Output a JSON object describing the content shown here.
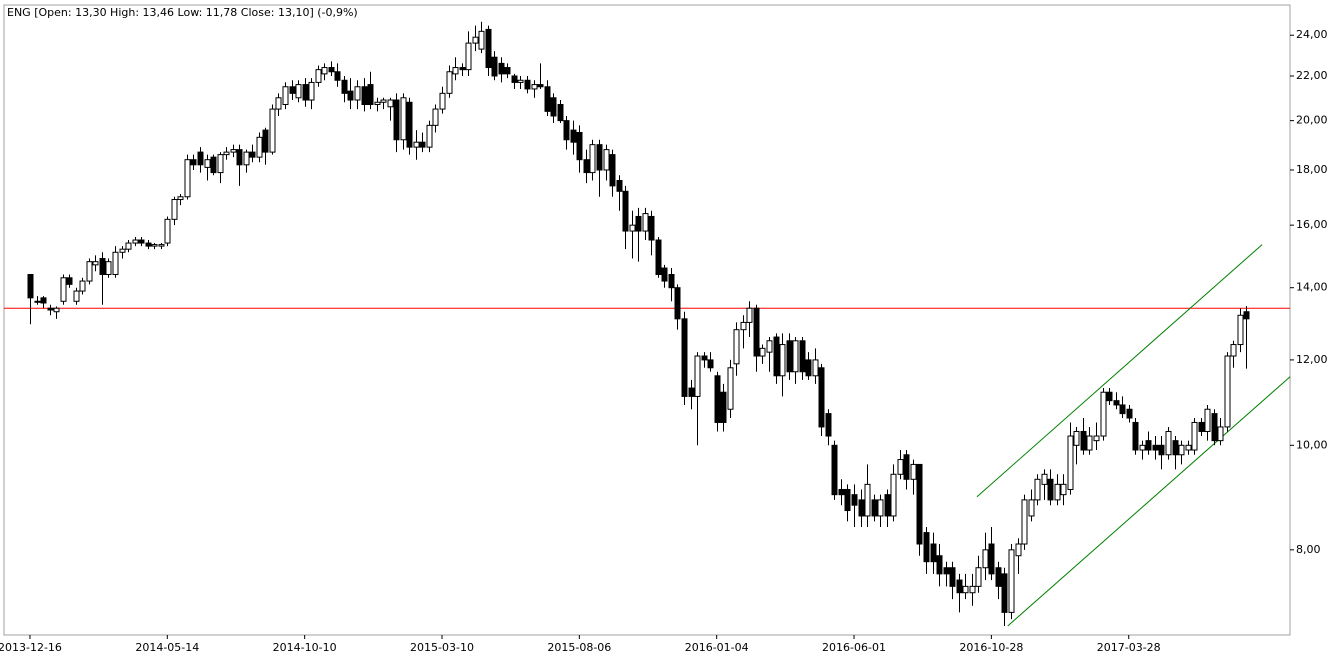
{
  "chart_data": {
    "type": "candlestick",
    "title": "ENG [Open: 13,30  High: 13,46  Low: 11,78  Close: 13,10] (-0,9%)",
    "categories": [
      "2013-12-16",
      null,
      null,
      null,
      null,
      null,
      null,
      null,
      null,
      null,
      null,
      null,
      null,
      null,
      null,
      null,
      null,
      null,
      null,
      null,
      null,
      "2014-05-14",
      null,
      null,
      null,
      null,
      null,
      null,
      null,
      null,
      null,
      null,
      null,
      null,
      null,
      null,
      null,
      null,
      null,
      null,
      null,
      null,
      "2014-10-10",
      null,
      null,
      null,
      null,
      null,
      null,
      null,
      null,
      null,
      null,
      null,
      null,
      null,
      null,
      null,
      null,
      null,
      null,
      null,
      null,
      "2015-03-10",
      null,
      null,
      null,
      null,
      null,
      null,
      null,
      null,
      null,
      null,
      null,
      null,
      null,
      null,
      null,
      null,
      null,
      null,
      null,
      null,
      "2015-08-06",
      null,
      null,
      null,
      null,
      null,
      null,
      null,
      null,
      null,
      null,
      null,
      null,
      null,
      null,
      null,
      null,
      null,
      null,
      null,
      null,
      "2016-01-04",
      null,
      null,
      null,
      null,
      null,
      null,
      null,
      null,
      null,
      null,
      null,
      null,
      null,
      null,
      null,
      null,
      null,
      null,
      null,
      null,
      "2016-06-01",
      null,
      null,
      null,
      null,
      null,
      null,
      null,
      null,
      null,
      null,
      null,
      null,
      null,
      null,
      null,
      null,
      null,
      null,
      null,
      null,
      "2016-10-28",
      null,
      null,
      null,
      null,
      null,
      null,
      null,
      null,
      null,
      null,
      null,
      null,
      null,
      null,
      null,
      null,
      null,
      null,
      null,
      null,
      "2017-03-28",
      null,
      null,
      null,
      null,
      null,
      null,
      null,
      null,
      null,
      null,
      null,
      null,
      null,
      null,
      null,
      null,
      null,
      null
    ],
    "ohlc": [
      [
        14.4,
        14.4,
        12.95,
        13.7
      ],
      [
        13.6,
        13.75,
        13.5,
        13.6
      ],
      [
        13.7,
        13.75,
        13.4,
        13.55
      ],
      [
        13.4,
        13.5,
        13.2,
        13.35
      ],
      [
        13.3,
        13.45,
        13.1,
        13.4
      ],
      [
        13.6,
        14.4,
        13.5,
        14.3
      ],
      [
        14.3,
        14.4,
        14.0,
        14.1
      ],
      [
        13.6,
        14.0,
        13.5,
        13.9
      ],
      [
        13.9,
        14.3,
        13.8,
        14.2
      ],
      [
        14.2,
        14.9,
        14.1,
        14.8
      ],
      [
        14.7,
        15.0,
        14.5,
        14.8
      ],
      [
        14.9,
        15.1,
        13.5,
        14.4
      ],
      [
        14.4,
        14.9,
        14.3,
        14.8
      ],
      [
        14.4,
        15.3,
        14.3,
        15.1
      ],
      [
        15.1,
        15.3,
        14.9,
        15.2
      ],
      [
        15.2,
        15.5,
        15.1,
        15.4
      ],
      [
        15.4,
        15.6,
        15.3,
        15.5
      ],
      [
        15.5,
        15.6,
        15.3,
        15.4
      ],
      [
        15.4,
        15.5,
        15.2,
        15.3
      ],
      [
        15.3,
        15.4,
        15.2,
        15.35
      ],
      [
        15.3,
        15.4,
        15.2,
        15.35
      ],
      [
        15.4,
        16.3,
        15.3,
        16.2
      ],
      [
        16.2,
        17.0,
        16.0,
        16.9
      ],
      [
        16.9,
        17.1,
        16.7,
        17.0
      ],
      [
        17.0,
        18.6,
        16.9,
        18.4
      ],
      [
        18.4,
        18.6,
        18.0,
        18.2
      ],
      [
        18.7,
        18.9,
        17.9,
        18.2
      ],
      [
        18.1,
        18.6,
        17.6,
        18.4
      ],
      [
        18.5,
        18.6,
        17.8,
        17.9
      ],
      [
        17.9,
        18.7,
        17.5,
        18.6
      ],
      [
        18.6,
        18.9,
        18.4,
        18.7
      ],
      [
        18.7,
        19.0,
        18.5,
        18.8
      ],
      [
        18.8,
        19.0,
        17.4,
        18.2
      ],
      [
        18.2,
        18.8,
        17.9,
        18.7
      ],
      [
        18.7,
        19.0,
        18.3,
        18.5
      ],
      [
        18.5,
        19.5,
        18.3,
        19.3
      ],
      [
        19.6,
        19.7,
        18.2,
        18.7
      ],
      [
        18.7,
        20.7,
        18.6,
        20.5
      ],
      [
        20.5,
        21.2,
        20.2,
        21.0
      ],
      [
        20.7,
        21.7,
        20.5,
        21.5
      ],
      [
        21.5,
        21.8,
        20.9,
        21.2
      ],
      [
        21.0,
        21.8,
        20.8,
        21.6
      ],
      [
        21.6,
        21.9,
        20.6,
        20.9
      ],
      [
        20.9,
        21.9,
        20.5,
        21.7
      ],
      [
        21.7,
        22.5,
        21.5,
        22.3
      ],
      [
        22.1,
        22.6,
        21.8,
        22.4
      ],
      [
        22.4,
        22.7,
        22.0,
        22.2
      ],
      [
        22.2,
        22.6,
        21.5,
        21.8
      ],
      [
        21.8,
        22.0,
        20.8,
        21.2
      ],
      [
        21.3,
        21.9,
        20.5,
        20.9
      ],
      [
        20.9,
        21.8,
        20.5,
        21.5
      ],
      [
        21.5,
        21.9,
        20.4,
        20.7
      ],
      [
        21.6,
        22.2,
        20.5,
        20.7
      ],
      [
        20.7,
        21.0,
        20.4,
        20.8
      ],
      [
        20.8,
        21.0,
        20.5,
        20.9
      ],
      [
        20.6,
        21.0,
        20.0,
        20.9
      ],
      [
        20.9,
        21.2,
        18.7,
        19.2
      ],
      [
        19.2,
        21.2,
        18.8,
        21.0
      ],
      [
        20.8,
        21.0,
        18.6,
        18.9
      ],
      [
        18.9,
        19.6,
        18.4,
        19.1
      ],
      [
        19.1,
        19.5,
        18.7,
        18.9
      ],
      [
        18.9,
        20.0,
        18.7,
        19.8
      ],
      [
        19.8,
        20.7,
        19.5,
        20.5
      ],
      [
        20.5,
        21.5,
        20.3,
        21.2
      ],
      [
        21.2,
        22.5,
        21.0,
        22.2
      ],
      [
        22.1,
        22.9,
        21.8,
        22.4
      ],
      [
        22.4,
        22.6,
        22.0,
        22.3
      ],
      [
        22.3,
        24.2,
        22.0,
        23.6
      ],
      [
        23.6,
        24.5,
        23.2,
        23.9
      ],
      [
        23.3,
        24.7,
        23.1,
        24.2
      ],
      [
        24.3,
        24.5,
        22.0,
        22.4
      ],
      [
        22.9,
        23.2,
        21.8,
        22.0
      ],
      [
        22.6,
        22.9,
        21.7,
        22.1
      ],
      [
        22.4,
        22.6,
        21.9,
        22.1
      ],
      [
        22.0,
        22.1,
        21.4,
        21.7
      ],
      [
        21.7,
        22.0,
        21.4,
        21.8
      ],
      [
        21.8,
        22.0,
        21.2,
        21.4
      ],
      [
        21.4,
        21.8,
        21.0,
        21.6
      ],
      [
        21.6,
        22.6,
        21.4,
        21.5
      ],
      [
        21.5,
        21.8,
        20.2,
        20.4
      ],
      [
        21.0,
        21.2,
        19.9,
        20.2
      ],
      [
        20.7,
        20.9,
        19.9,
        20.0
      ],
      [
        20.0,
        20.2,
        18.8,
        19.2
      ],
      [
        19.6,
        20.0,
        18.6,
        19.1
      ],
      [
        19.5,
        19.8,
        17.9,
        18.4
      ],
      [
        18.4,
        18.8,
        17.5,
        17.9
      ],
      [
        17.9,
        19.2,
        17.6,
        19.0
      ],
      [
        19.0,
        19.2,
        17.0,
        18.0
      ],
      [
        18.0,
        19.0,
        17.6,
        18.8
      ],
      [
        18.6,
        18.8,
        17.0,
        17.4
      ],
      [
        17.6,
        17.8,
        16.5,
        17.2
      ],
      [
        17.2,
        17.4,
        15.2,
        15.8
      ],
      [
        15.8,
        16.5,
        14.9,
        16.0
      ],
      [
        16.3,
        16.6,
        14.8,
        15.8
      ],
      [
        15.8,
        16.6,
        15.5,
        16.4
      ],
      [
        16.3,
        16.5,
        15.0,
        15.5
      ],
      [
        15.5,
        15.6,
        14.3,
        14.4
      ],
      [
        14.6,
        14.7,
        14.0,
        14.2
      ],
      [
        14.4,
        14.6,
        13.6,
        14.0
      ],
      [
        14.0,
        14.1,
        12.8,
        13.1
      ],
      [
        13.1,
        13.3,
        10.9,
        11.1
      ],
      [
        11.3,
        11.5,
        10.8,
        11.1
      ],
      [
        11.1,
        12.2,
        10.0,
        12.1
      ],
      [
        12.1,
        12.2,
        11.8,
        12.0
      ],
      [
        12.0,
        12.2,
        11.7,
        11.8
      ],
      [
        11.6,
        11.7,
        10.3,
        10.5
      ],
      [
        11.2,
        11.4,
        10.3,
        10.5
      ],
      [
        10.8,
        12.0,
        10.6,
        11.8
      ],
      [
        11.9,
        13.0,
        11.6,
        12.8
      ],
      [
        12.8,
        13.2,
        12.3,
        13.0
      ],
      [
        13.0,
        13.6,
        12.6,
        13.4
      ],
      [
        13.4,
        13.5,
        11.7,
        12.1
      ],
      [
        12.1,
        12.4,
        11.9,
        12.3
      ],
      [
        12.2,
        12.6,
        11.7,
        12.5
      ],
      [
        12.6,
        12.7,
        11.4,
        11.6
      ],
      [
        11.6,
        12.7,
        11.1,
        12.4
      ],
      [
        12.5,
        12.7,
        11.5,
        11.7
      ],
      [
        11.7,
        12.6,
        11.4,
        12.5
      ],
      [
        12.5,
        12.6,
        11.5,
        11.7
      ],
      [
        12.0,
        12.2,
        11.5,
        11.6
      ],
      [
        11.6,
        12.3,
        11.4,
        12.0
      ],
      [
        11.8,
        11.9,
        10.2,
        10.4
      ],
      [
        10.7,
        10.8,
        10.0,
        10.2
      ],
      [
        10.0,
        10.1,
        8.9,
        9.0
      ],
      [
        9.1,
        9.3,
        8.8,
        9.0
      ],
      [
        9.1,
        9.2,
        8.5,
        8.7
      ],
      [
        9.0,
        9.2,
        8.4,
        8.8
      ],
      [
        8.9,
        9.1,
        8.4,
        8.6
      ],
      [
        8.6,
        9.6,
        8.4,
        9.2
      ],
      [
        8.9,
        9.0,
        8.5,
        8.6
      ],
      [
        8.6,
        9.0,
        8.4,
        8.9
      ],
      [
        9.0,
        9.1,
        8.4,
        8.6
      ],
      [
        8.6,
        9.6,
        8.5,
        9.4
      ],
      [
        9.4,
        9.9,
        9.3,
        9.7
      ],
      [
        9.8,
        9.9,
        9.1,
        9.3
      ],
      [
        9.3,
        9.7,
        9.0,
        9.6
      ],
      [
        9.6,
        9.6,
        7.9,
        8.1
      ],
      [
        8.3,
        8.4,
        7.6,
        7.8
      ],
      [
        8.1,
        8.3,
        7.6,
        7.8
      ],
      [
        7.9,
        8.1,
        7.4,
        7.6
      ],
      [
        7.7,
        7.8,
        7.4,
        7.6
      ],
      [
        7.7,
        7.8,
        7.2,
        7.4
      ],
      [
        7.5,
        7.6,
        7.0,
        7.3
      ],
      [
        7.3,
        7.6,
        7.2,
        7.4
      ],
      [
        7.3,
        7.6,
        7.1,
        7.4
      ],
      [
        7.4,
        7.9,
        7.3,
        7.7
      ],
      [
        7.7,
        8.3,
        7.5,
        8.0
      ],
      [
        8.1,
        8.4,
        7.5,
        7.6
      ],
      [
        7.7,
        7.8,
        7.2,
        7.4
      ],
      [
        7.6,
        7.7,
        6.8,
        7.0
      ],
      [
        7.0,
        8.1,
        6.9,
        8.0
      ],
      [
        7.9,
        8.2,
        7.6,
        8.1
      ],
      [
        8.1,
        9.0,
        8.0,
        8.9
      ],
      [
        8.6,
        9.1,
        8.5,
        8.9
      ],
      [
        8.9,
        9.4,
        8.8,
        9.3
      ],
      [
        9.2,
        9.5,
        8.9,
        9.4
      ],
      [
        9.3,
        9.5,
        8.8,
        8.9
      ],
      [
        8.9,
        9.4,
        8.8,
        9.2
      ],
      [
        9.0,
        9.4,
        8.8,
        9.2
      ],
      [
        9.1,
        10.5,
        9.0,
        10.2
      ],
      [
        10.0,
        10.4,
        9.6,
        10.3
      ],
      [
        10.3,
        10.6,
        9.8,
        9.9
      ],
      [
        9.9,
        10.4,
        9.8,
        10.2
      ],
      [
        10.1,
        10.5,
        9.9,
        10.2
      ],
      [
        10.2,
        11.3,
        10.1,
        11.2
      ],
      [
        11.2,
        11.3,
        10.9,
        11.0
      ],
      [
        11.0,
        11.2,
        10.8,
        10.9
      ],
      [
        10.9,
        11.1,
        10.6,
        10.7
      ],
      [
        10.8,
        10.9,
        10.5,
        10.6
      ],
      [
        10.5,
        10.6,
        9.8,
        9.9
      ],
      [
        9.9,
        10.1,
        9.7,
        10.0
      ],
      [
        10.1,
        10.3,
        9.8,
        9.9
      ],
      [
        10.0,
        10.2,
        9.7,
        9.9
      ],
      [
        10.0,
        10.2,
        9.5,
        9.8
      ],
      [
        9.8,
        10.4,
        9.7,
        10.3
      ],
      [
        10.1,
        10.2,
        9.5,
        9.8
      ],
      [
        9.8,
        10.1,
        9.6,
        10.0
      ],
      [
        9.9,
        10.1,
        9.8,
        10.0
      ],
      [
        9.9,
        10.6,
        9.8,
        10.5
      ],
      [
        10.5,
        10.6,
        10.2,
        10.3
      ],
      [
        10.3,
        10.9,
        10.1,
        10.8
      ],
      [
        10.7,
        10.8,
        10.0,
        10.1
      ],
      [
        10.1,
        10.6,
        10.0,
        10.4
      ],
      [
        10.4,
        12.2,
        10.3,
        12.1
      ],
      [
        12.1,
        12.5,
        11.8,
        12.4
      ],
      [
        12.4,
        13.4,
        12.2,
        13.2
      ],
      [
        13.3,
        13.46,
        11.78,
        13.1
      ]
    ],
    "up_color": "#ffffff",
    "down_color": "#000000",
    "log_scale": true,
    "xlim": [
      -3.97,
      192.66
    ],
    "ylim": [
      6.67,
      25.6
    ],
    "yticks": [
      {
        "value": 8,
        "label": "8,00"
      },
      {
        "value": 10,
        "label": "10,00"
      },
      {
        "value": 12,
        "label": "12,00"
      },
      {
        "value": 14,
        "label": "14,00"
      },
      {
        "value": 16,
        "label": "16,00"
      },
      {
        "value": 18,
        "label": "18,00"
      },
      {
        "value": 20,
        "label": "20,00"
      },
      {
        "value": 22,
        "label": "22,00"
      },
      {
        "value": 24,
        "label": "24,00"
      }
    ],
    "hline": {
      "value": 13.4,
      "color": "#ff0000"
    },
    "trendlines": [
      {
        "color": "#008000",
        "x": [
          144.8,
          188.4
        ],
        "y": [
          8.96,
          15.35
        ]
      },
      {
        "color": "#008000",
        "x": [
          149.5,
          192.7
        ],
        "y": [
          6.8,
          11.58
        ]
      }
    ]
  }
}
